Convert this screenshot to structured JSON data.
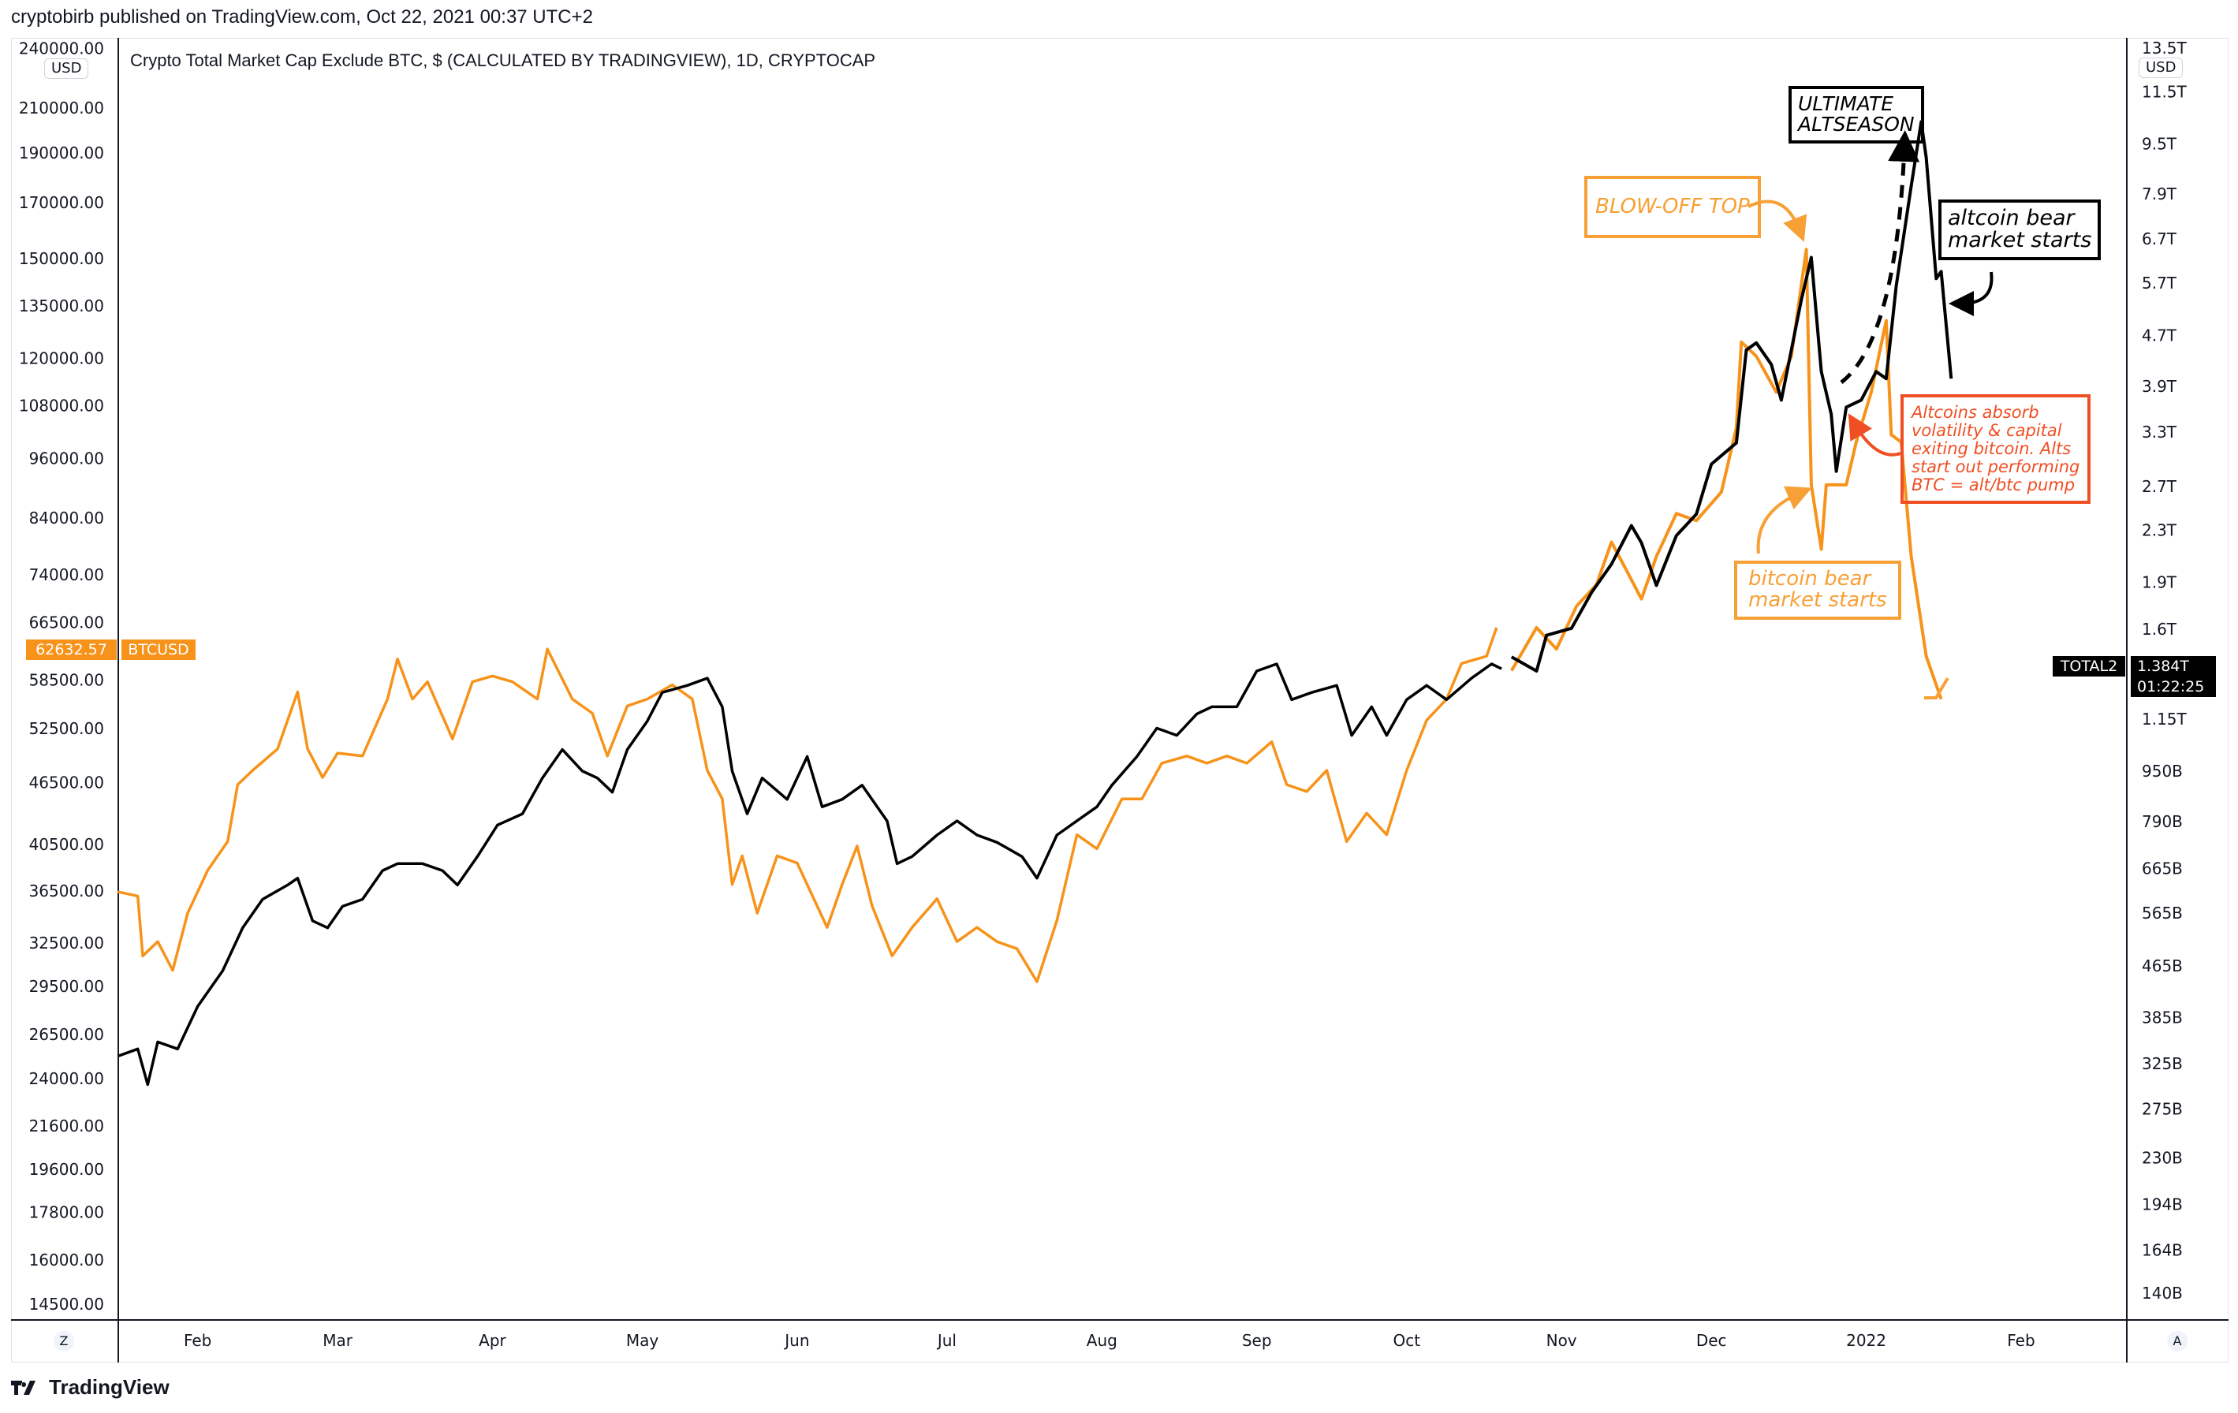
{
  "header": {
    "published": "cryptobirb published on TradingView.com, Oct 22, 2021 00:37 UTC+2"
  },
  "chart_title": "Crypto Total Market Cap Exclude BTC, $ (CALCULATED BY TRADINGVIEW), 1D, CRYPTOCAP",
  "currency_left": "USD",
  "currency_right": "USD",
  "btc_price_tag": "62632.57",
  "btc_symbol_tag": "BTCUSD",
  "total2_symbol_tag": "TOTAL2",
  "total2_value": "1.384T",
  "total2_countdown": "01:22:25",
  "scale_buttons": {
    "left": "Z",
    "right": "A"
  },
  "footer_logo": "TradingView",
  "colors": {
    "btc": "#f7931a",
    "total2": "#000000",
    "red_note": "#f04e23",
    "orange_note": "#f7a035"
  },
  "annotations": {
    "ultimate": [
      "ULTIMATE",
      "ALTSEASON"
    ],
    "blowoff": "BLOW-OFF TOP",
    "altbear": [
      "altcoin bear",
      "market starts"
    ],
    "btcbear": [
      "bitcoin bear",
      "market starts"
    ],
    "absorb": [
      "Altcoins absorb",
      "volatility & capital",
      "exiting bitcoin. Alts",
      "start out performing",
      "BTC = alt/btc pump"
    ]
  },
  "chart_data": {
    "type": "line",
    "title": "Crypto Total Market Cap Exclude BTC, $ (CALCULATED BY TRADINGVIEW), 1D, CRYPTOCAP",
    "x_unit": "day of year (2021, day 1 = Jan 1)",
    "x_ticks": [
      {
        "label": "Feb",
        "day": 31
      },
      {
        "label": "Mar",
        "day": 59
      },
      {
        "label": "Apr",
        "day": 90
      },
      {
        "label": "May",
        "day": 120
      },
      {
        "label": "Jun",
        "day": 151
      },
      {
        "label": "Jul",
        "day": 181
      },
      {
        "label": "Aug",
        "day": 212
      },
      {
        "label": "Sep",
        "day": 243
      },
      {
        "label": "Oct",
        "day": 273
      },
      {
        "label": "Nov",
        "day": 304
      },
      {
        "label": "Dec",
        "day": 334
      },
      {
        "label": "2022",
        "day": 365
      },
      {
        "label": "Feb",
        "day": 396
      }
    ],
    "left_axis": {
      "scale": "log",
      "unit": "USD",
      "ticks": [
        "240000.00",
        "210000.00",
        "190000.00",
        "170000.00",
        "150000.00",
        "135000.00",
        "120000.00",
        "108000.00",
        "96000.00",
        "84000.00",
        "74000.00",
        "66500.00",
        "58500.00",
        "52500.00",
        "46500.00",
        "40500.00",
        "36500.00",
        "32500.00",
        "29500.00",
        "26500.00",
        "24000.00",
        "21600.00",
        "19600.00",
        "17800.00",
        "16000.00",
        "14500.00"
      ]
    },
    "right_axis": {
      "scale": "log",
      "unit": "USD",
      "ticks": [
        "13.5T",
        "11.5T",
        "9.5T",
        "7.9T",
        "6.7T",
        "5.7T",
        "4.7T",
        "3.9T",
        "3.3T",
        "2.7T",
        "2.3T",
        "1.9T",
        "1.6T",
        "1.15T",
        "950B",
        "790B",
        "665B",
        "565B",
        "465B",
        "385B",
        "325B",
        "275B",
        "230B",
        "194B",
        "164B",
        "140B"
      ]
    },
    "series": [
      {
        "name": "BTCUSD",
        "axis": "left",
        "kind": "historical",
        "points": [
          [
            15,
            36450
          ],
          [
            19,
            36100
          ],
          [
            20,
            31580
          ],
          [
            23,
            32600
          ],
          [
            26,
            30580
          ],
          [
            29,
            34750
          ],
          [
            33,
            38240
          ],
          [
            37,
            40770
          ],
          [
            39,
            46300
          ],
          [
            42,
            47800
          ],
          [
            47,
            50150
          ],
          [
            51,
            56970
          ],
          [
            53,
            50150
          ],
          [
            56,
            47050
          ],
          [
            59,
            49680
          ],
          [
            64,
            49360
          ],
          [
            69,
            56060
          ],
          [
            71,
            61320
          ],
          [
            74,
            56060
          ],
          [
            77,
            58260
          ],
          [
            82,
            51290
          ],
          [
            86,
            58260
          ],
          [
            90,
            59030
          ],
          [
            94,
            58260
          ],
          [
            99,
            56060
          ],
          [
            101,
            62700
          ],
          [
            106,
            56060
          ],
          [
            110,
            54320
          ],
          [
            113,
            49360
          ],
          [
            117,
            55210
          ],
          [
            121,
            56060
          ],
          [
            126,
            57880
          ],
          [
            130,
            56060
          ],
          [
            133,
            47800
          ],
          [
            136,
            44850
          ],
          [
            138,
            37040
          ],
          [
            140,
            39490
          ],
          [
            143,
            34750
          ],
          [
            147,
            39490
          ],
          [
            151,
            38860
          ],
          [
            157,
            33650
          ],
          [
            160,
            37040
          ],
          [
            163,
            40370
          ],
          [
            166,
            35310
          ],
          [
            170,
            31580
          ],
          [
            174,
            33650
          ],
          [
            179,
            35880
          ],
          [
            183,
            32600
          ],
          [
            187,
            33650
          ],
          [
            191,
            32600
          ],
          [
            195,
            32090
          ],
          [
            199,
            29810
          ],
          [
            203,
            34190
          ],
          [
            207,
            41400
          ],
          [
            211,
            40120
          ],
          [
            216,
            44850
          ],
          [
            220,
            44850
          ],
          [
            224,
            48580
          ],
          [
            229,
            49360
          ],
          [
            233,
            48580
          ],
          [
            237,
            49360
          ],
          [
            241,
            48580
          ],
          [
            246,
            50950
          ],
          [
            249,
            46300
          ],
          [
            253,
            45600
          ],
          [
            257,
            47800
          ],
          [
            261,
            40770
          ],
          [
            265,
            43440
          ],
          [
            269,
            41400
          ],
          [
            273,
            47800
          ],
          [
            277,
            53460
          ],
          [
            281,
            56060
          ],
          [
            284,
            60710
          ],
          [
            289,
            61700
          ],
          [
            291,
            65760
          ]
        ]
      },
      {
        "name": "BTCUSD projection",
        "axis": "left",
        "kind": "projection",
        "points": [
          [
            294,
            59740
          ],
          [
            299,
            65760
          ],
          [
            303,
            62700
          ],
          [
            307,
            68990
          ],
          [
            311,
            72400
          ],
          [
            314,
            79620
          ],
          [
            317,
            74750
          ],
          [
            320,
            70120
          ],
          [
            323,
            77110
          ],
          [
            327,
            84870
          ],
          [
            331,
            83530
          ],
          [
            336,
            89040
          ],
          [
            339,
            102800
          ],
          [
            340,
            124500
          ],
          [
            343,
            120600
          ],
          [
            347,
            111300
          ],
          [
            350,
            120600
          ],
          [
            353,
            153100
          ],
          [
            354,
            90480
          ],
          [
            356,
            78350
          ],
          [
            357,
            90480
          ],
          [
            361,
            90480
          ],
          [
            363,
            99560
          ],
          [
            366,
            111300
          ],
          [
            369,
            130600
          ],
          [
            370,
            101200
          ],
          [
            372,
            99560
          ],
          [
            374,
            77110
          ],
          [
            377,
            61700
          ],
          [
            380,
            56060
          ]
        ]
      },
      {
        "name": "TOTAL2",
        "axis": "right",
        "unit": "B USD",
        "kind": "historical",
        "points": [
          [
            15,
            334
          ],
          [
            19,
            343
          ],
          [
            21,
            301
          ],
          [
            23,
            352
          ],
          [
            27,
            343
          ],
          [
            31,
            401
          ],
          [
            36,
            457
          ],
          [
            40,
            535
          ],
          [
            44,
            594
          ],
          [
            49,
            626
          ],
          [
            51,
            642
          ],
          [
            54,
            549
          ],
          [
            57,
            535
          ],
          [
            60,
            579
          ],
          [
            64,
            594
          ],
          [
            68,
            660
          ],
          [
            71,
            677
          ],
          [
            76,
            677
          ],
          [
            80,
            660
          ],
          [
            83,
            626
          ],
          [
            87,
            695
          ],
          [
            91,
            780
          ],
          [
            96,
            813
          ],
          [
            100,
            927
          ],
          [
            104,
            1029
          ],
          [
            108,
            951
          ],
          [
            111,
            927
          ],
          [
            114,
            880
          ],
          [
            117,
            1029
          ],
          [
            121,
            1142
          ],
          [
            124,
            1269
          ],
          [
            129,
            1302
          ],
          [
            133,
            1337
          ],
          [
            136,
            1204
          ],
          [
            138,
            951
          ],
          [
            141,
            813
          ],
          [
            144,
            927
          ],
          [
            149,
            857
          ],
          [
            153,
            1003
          ],
          [
            156,
            834
          ],
          [
            160,
            857
          ],
          [
            164,
            903
          ],
          [
            169,
            792
          ],
          [
            171,
            677
          ],
          [
            174,
            695
          ],
          [
            179,
            752
          ],
          [
            183,
            792
          ],
          [
            187,
            752
          ],
          [
            191,
            732
          ],
          [
            196,
            695
          ],
          [
            199,
            642
          ],
          [
            203,
            752
          ],
          [
            207,
            792
          ],
          [
            211,
            834
          ],
          [
            214,
            903
          ],
          [
            219,
            1003
          ],
          [
            223,
            1113
          ],
          [
            227,
            1084
          ],
          [
            231,
            1173
          ],
          [
            234,
            1204
          ],
          [
            239,
            1204
          ],
          [
            243,
            1373
          ],
          [
            247,
            1409
          ],
          [
            250,
            1236
          ],
          [
            254,
            1269
          ],
          [
            259,
            1302
          ],
          [
            262,
            1084
          ],
          [
            266,
            1204
          ],
          [
            269,
            1084
          ],
          [
            273,
            1236
          ],
          [
            277,
            1302
          ],
          [
            281,
            1236
          ],
          [
            286,
            1337
          ],
          [
            290,
            1409
          ],
          [
            292,
            1384
          ]
        ]
      },
      {
        "name": "TOTAL2 projection",
        "axis": "right",
        "unit": "B USD",
        "kind": "projection",
        "points": [
          [
            294,
            1446
          ],
          [
            299,
            1373
          ],
          [
            301,
            1565
          ],
          [
            306,
            1606
          ],
          [
            310,
            1831
          ],
          [
            314,
            2032
          ],
          [
            318,
            2341
          ],
          [
            320,
            2198
          ],
          [
            323,
            1879
          ],
          [
            327,
            2257
          ],
          [
            331,
            2442
          ],
          [
            334,
            2933
          ],
          [
            339,
            3171
          ],
          [
            341,
            4459
          ],
          [
            343,
            4577
          ],
          [
            346,
            4229
          ],
          [
            348,
            3710
          ],
          [
            350,
            4459
          ],
          [
            352,
            5354
          ],
          [
            354,
            6262
          ],
          [
            356,
            4120
          ],
          [
            358,
            3522
          ],
          [
            359,
            2857
          ],
          [
            361,
            3615
          ],
          [
            364,
            3710
          ],
          [
            367,
            4120
          ],
          [
            369,
            4014
          ],
          [
            371,
            5641
          ],
          [
            374,
            8140
          ],
          [
            376,
            10300
          ],
          [
            377,
            9041
          ],
          [
            379,
            5795
          ],
          [
            380,
            5947
          ],
          [
            382,
            4014
          ]
        ]
      }
    ]
  }
}
